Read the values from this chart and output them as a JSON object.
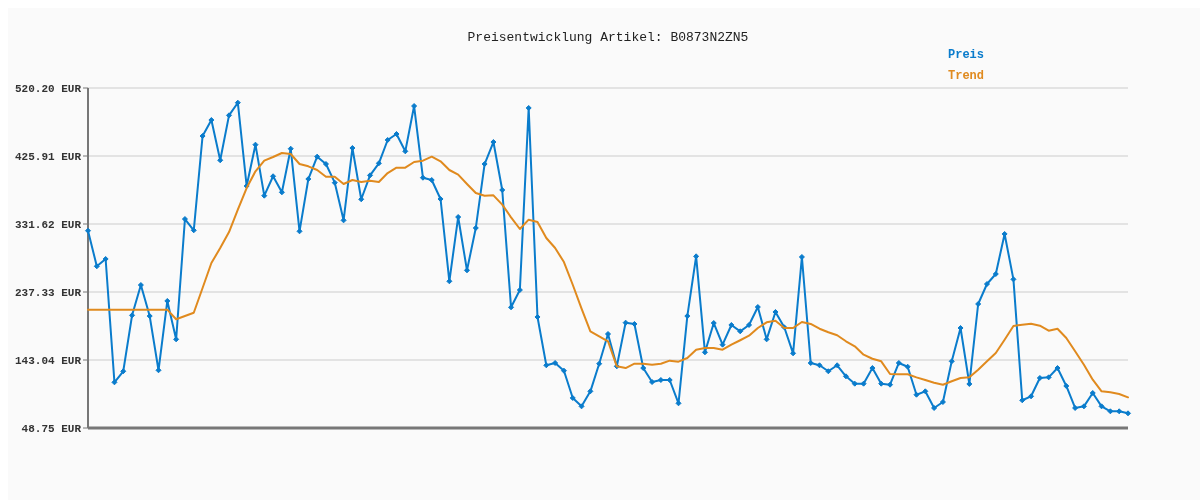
{
  "chart_data": {
    "type": "line",
    "title": "Preisentwicklung Artikel: B0873N2ZN5",
    "categories": [
      null,
      null,
      null,
      null,
      null,
      null,
      null,
      null,
      null,
      null,
      null,
      null,
      null,
      null,
      null,
      null,
      null,
      null,
      null,
      null,
      null,
      null,
      null,
      null,
      null,
      null,
      null,
      null,
      null,
      null,
      null,
      null,
      null,
      null,
      null,
      null,
      null,
      null,
      null,
      null,
      null,
      null,
      null,
      null,
      null,
      null,
      null,
      null,
      null,
      null,
      null,
      null,
      null,
      null,
      null,
      null,
      null,
      null,
      null,
      null,
      null,
      null,
      null,
      null,
      null,
      null,
      null,
      null,
      null,
      null,
      null,
      null,
      null,
      null,
      null,
      null,
      null,
      null,
      null,
      null,
      null,
      null,
      null,
      null,
      null,
      null,
      null,
      null,
      null,
      null,
      null,
      null,
      null,
      null,
      null,
      null,
      null,
      null,
      null,
      null,
      null,
      null,
      null,
      null,
      null,
      null,
      null,
      null,
      null,
      null,
      null,
      null,
      null,
      null,
      null,
      null,
      null,
      null,
      null
    ],
    "series": [
      {
        "name": "Preis",
        "color": "#0a7ccc",
        "marker": "diamond",
        "values": [
          322.3,
          273.0,
          283.1,
          112.1,
          127.4,
          205.0,
          247.0,
          204.0,
          128.8,
          224.9,
          171.7,
          338.5,
          322.9,
          453.6,
          475.8,
          420.0,
          482.3,
          499.8,
          384.3,
          441.6,
          370.9,
          397.8,
          375.6,
          436.0,
          321.5,
          394.0,
          425.0,
          414.8,
          388.9,
          336.7,
          437.0,
          365.9,
          399.1,
          415.8,
          448.1,
          456.4,
          432.4,
          495.2,
          395.8,
          392.6,
          366.3,
          252.2,
          341.3,
          267.4,
          326.1,
          414.8,
          445.3,
          378.8,
          216.1,
          240.1,
          492.5,
          202.7,
          135.7,
          138.9,
          128.2,
          90.4,
          78.8,
          99.6,
          137.9,
          179.1,
          134.3,
          194.8,
          193.0,
          131.9,
          112.5,
          115.3,
          115.3,
          83.0,
          204.0,
          286.8,
          153.7,
          194.3,
          164.3,
          191.6,
          182.8,
          191.6,
          216.5,
          171.7,
          209.6,
          188.4,
          152.3,
          285.9,
          138.9,
          135.7,
          127.4,
          135.7,
          120.4,
          110.2,
          110.2,
          131.9,
          110.2,
          108.8,
          138.9,
          133.7,
          94.9,
          99.6,
          76.5,
          84.8,
          141.2,
          187.4,
          109.8,
          220.7,
          248.4,
          262.3,
          317.8,
          254.9,
          87.2,
          92.7,
          118.1,
          119.0,
          131.9,
          107.0,
          76.5,
          78.8,
          97.3,
          78.8,
          71.9,
          71.9,
          69.1
        ]
      },
      {
        "name": "Trend",
        "color": "#e08a1e",
        "marker": "none",
        "values": [
          212.8,
          212.8,
          212.8,
          212.8,
          212.8,
          212.8,
          212.8,
          212.8,
          212.8,
          212.8,
          199.5,
          204.0,
          208.6,
          242.9,
          277.5,
          298.3,
          320.5,
          351.4,
          381.5,
          404.7,
          419.4,
          424.5,
          430.1,
          428.7,
          414.8,
          411.6,
          406.5,
          397.2,
          397.2,
          387.1,
          392.6,
          389.9,
          391.7,
          389.9,
          402.3,
          409.7,
          409.7,
          417.6,
          419.4,
          425.0,
          418.6,
          406.5,
          400.0,
          387.1,
          374.6,
          370.9,
          371.4,
          358.4,
          340.9,
          324.7,
          337.6,
          334.4,
          312.2,
          298.3,
          278.9,
          247.4,
          214.2,
          182.8,
          175.9,
          169.0,
          134.3,
          131.9,
          137.9,
          137.9,
          136.5,
          137.9,
          142.1,
          140.7,
          145.8,
          157.3,
          159.7,
          159.7,
          157.3,
          164.3,
          170.4,
          176.7,
          187.4,
          195.3,
          197.5,
          187.4,
          187.4,
          195.7,
          193.0,
          186.4,
          181.5,
          177.3,
          169.0,
          162.0,
          150.4,
          144.8,
          141.2,
          123.6,
          123.2,
          123.2,
          119.0,
          115.3,
          111.6,
          108.8,
          113.5,
          118.1,
          119.0,
          129.6,
          141.2,
          152.7,
          171.2,
          190.2,
          192.0,
          193.4,
          190.6,
          183.7,
          186.4,
          173.5,
          155.1,
          136.5,
          115.7,
          99.6,
          98.3,
          95.9,
          91.3
        ]
      }
    ],
    "ylim": [
      48.75,
      520.2
    ],
    "yticks": [
      {
        "value": 48.75,
        "label": "48.75 EUR"
      },
      {
        "value": 143.04,
        "label": "143.04 EUR"
      },
      {
        "value": 237.33,
        "label": "237.33 EUR"
      },
      {
        "value": 331.62,
        "label": "331.62 EUR"
      },
      {
        "value": 425.91,
        "label": "425.91 EUR"
      },
      {
        "value": 520.2,
        "label": "520.20 EUR"
      }
    ],
    "grid": "y",
    "legend": "top right",
    "line_style": "solid"
  }
}
